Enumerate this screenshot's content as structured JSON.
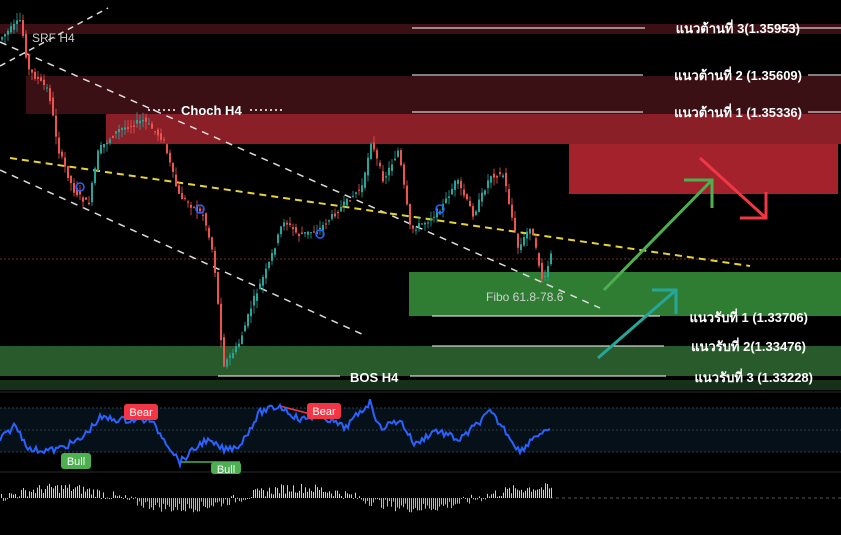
{
  "chart_data": {
    "type": "candlestick",
    "instrument_timeframe_note": "H4",
    "price_axis_range": [
      1.33,
      1.362
    ],
    "resistance_levels": [
      {
        "label": "แนวต้านที่ 3(1.35953)",
        "value": 1.35953
      },
      {
        "label": "แนวต้านที่ 2 (1.35609)",
        "value": 1.35609
      },
      {
        "label": "แนวต้านที่ 1 (1.35336)",
        "value": 1.35336
      }
    ],
    "support_levels": [
      {
        "label": "แนวรับที่ 1 (1.33706)",
        "value": 1.33706
      },
      {
        "label": "แนวรับที่ 2(1.33476)",
        "value": 1.33476
      },
      {
        "label": "แนวรับที่ 3 (1.33228)",
        "value": 1.33228
      }
    ],
    "annotations": {
      "srf": "SRF H4",
      "choch": "Choch H4",
      "bos": "BOS H4",
      "fibo": "Fibo 61.8-78.6"
    },
    "oscillator": {
      "labels": [
        "Bear",
        "Bear",
        "Bull",
        "Bull"
      ]
    },
    "colors": {
      "up_candle": "#26a69a",
      "down_candle": "#ef5350",
      "resistance_zone": "#a3222b",
      "support_zone": "#2e7d32",
      "trend_yellow": "#e6d33a",
      "oscillator_line": "#2962ff",
      "arrow_green": "#4caf50",
      "arrow_red": "#f23645",
      "arrow_teal": "#26a69a"
    }
  }
}
